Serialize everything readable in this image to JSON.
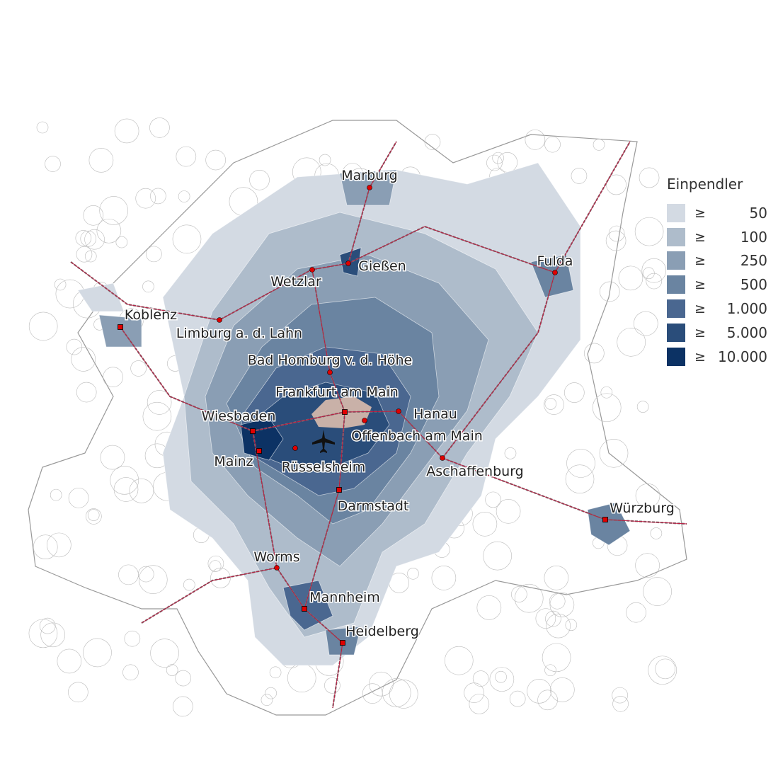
{
  "legend": {
    "title": "Einpendler",
    "symbol": "≥",
    "classes": [
      {
        "label": "50",
        "color": "#d3dae3"
      },
      {
        "label": "100",
        "color": "#aebccb"
      },
      {
        "label": "250",
        "color": "#8a9eb4"
      },
      {
        "label": "500",
        "color": "#6a84a1"
      },
      {
        "label": "1.000",
        "color": "#4a6790"
      },
      {
        "label": "5.000",
        "color": "#2a4d7a"
      },
      {
        "label": "10.000",
        "color": "#0c3264"
      }
    ]
  },
  "center_color": "#c9b1a8",
  "railway_color": "#c0143c",
  "city_marker_color": "#e00000",
  "airport_icon": "airplane-icon",
  "cities": [
    "Marburg",
    "Gießen",
    "Wetzlar",
    "Fulda",
    "Koblenz",
    "Limburg a. d. Lahn",
    "Bad Homburg v. d. Höhe",
    "Frankfurt am Main",
    "Wiesbaden",
    "Hanau",
    "Offenbach am Main",
    "Mainz",
    "Rüsselsheim",
    "Aschaffenburg",
    "Darmstadt",
    "Würzburg",
    "Worms",
    "Mannheim",
    "Heidelberg"
  ]
}
